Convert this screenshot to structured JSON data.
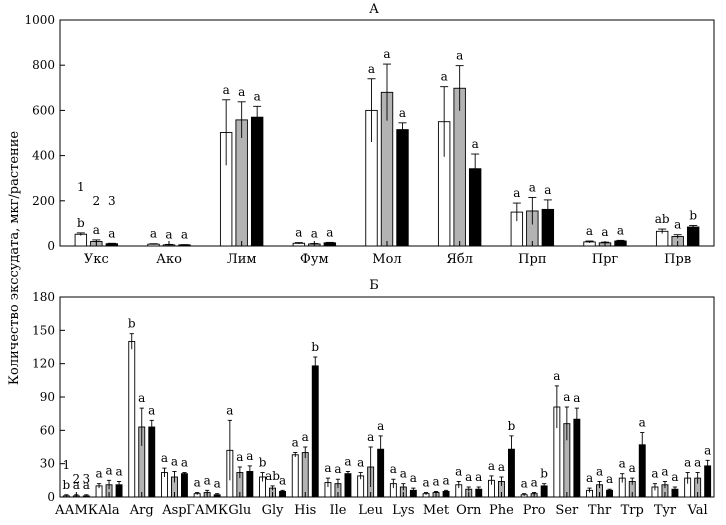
{
  "ylabel": "Количество экссудата, мкг/растение",
  "colors": {
    "white": "#ffffff",
    "grey": "#b3b3b3",
    "black": "#000000",
    "axis": "#000000"
  },
  "chart_data": [
    {
      "type": "bar",
      "title": "А",
      "xlabel": "",
      "ylabel": "Количество экссудата, мкг/растение",
      "ylim": [
        0,
        1000
      ],
      "ytick_step": 200,
      "yticks": [
        "0",
        "200",
        "400",
        "600",
        "800",
        "1000"
      ],
      "categories": [
        "Укс",
        "Ако",
        "Лим",
        "Фум",
        "Мол",
        "Ябл",
        "Прп",
        "Прг",
        "Прв"
      ],
      "series": [
        {
          "name": "1",
          "color": "white",
          "values": [
            52,
            8,
            502,
            12,
            600,
            550,
            150,
            18,
            65
          ],
          "errors": [
            6,
            2,
            145,
            3,
            140,
            155,
            40,
            4,
            10
          ],
          "letters": [
            "b",
            "a",
            "a",
            "a",
            "a",
            "a",
            "a",
            "a",
            "ab"
          ]
        },
        {
          "name": "2",
          "color": "grey",
          "values": [
            20,
            5,
            558,
            9,
            680,
            698,
            155,
            14,
            42
          ],
          "errors": [
            7,
            2,
            80,
            2,
            125,
            100,
            60,
            3,
            8
          ],
          "letters": [
            "a",
            "a",
            "a",
            "a",
            "a",
            "a",
            "a",
            "a",
            "a"
          ]
        },
        {
          "name": "3",
          "color": "black",
          "values": [
            10,
            5,
            570,
            14,
            515,
            342,
            162,
            22,
            84
          ],
          "errors": [
            2,
            1,
            48,
            2,
            30,
            65,
            42,
            3,
            7
          ],
          "letters": [
            "a",
            "a",
            "a",
            "a",
            "a",
            "a",
            "a",
            "a",
            "b"
          ]
        }
      ],
      "series_numbers": [
        "1",
        "2",
        "3"
      ]
    },
    {
      "type": "bar",
      "title": "Б",
      "xlabel": "",
      "ylabel": "Количество экссудата, мкг/растение",
      "ylim": [
        0,
        180
      ],
      "ytick_step": 30,
      "yticks": [
        "0",
        "30",
        "60",
        "90",
        "120",
        "150",
        "180"
      ],
      "categories": [
        "ААМК",
        "Ala",
        "Arg",
        "Asp",
        "ГАМК",
        "Glu",
        "Gly",
        "His",
        "Ile",
        "Leu",
        "Lys",
        "Met",
        "Orn",
        "Phe",
        "Pro",
        "Ser",
        "Thr",
        "Trp",
        "Tyr",
        "Val"
      ],
      "series": [
        {
          "name": "1",
          "color": "white",
          "values": [
            1,
            10,
            140,
            22,
            3,
            42,
            18,
            38,
            13,
            19,
            12,
            3,
            11,
            15,
            2,
            81,
            6,
            17,
            9,
            17
          ],
          "errors": [
            1,
            2,
            7,
            4,
            1,
            27,
            4,
            2,
            4,
            3,
            4,
            1,
            3,
            4,
            1,
            19,
            2,
            4,
            3,
            5
          ],
          "letters": [
            "b",
            "a",
            "b",
            "a",
            "a",
            "a",
            "b",
            "a",
            "a",
            "a",
            "a",
            "a",
            "a",
            "a",
            "a",
            "a",
            "a",
            "a",
            "a",
            "a"
          ]
        },
        {
          "name": "2",
          "color": "grey",
          "values": [
            1,
            11,
            63,
            18,
            4,
            22,
            8,
            40,
            12,
            27,
            9,
            4,
            7,
            14,
            3,
            66,
            11,
            14,
            11,
            17
          ],
          "errors": [
            1,
            4,
            17,
            5,
            2,
            5,
            2,
            5,
            4,
            18,
            3,
            1,
            2,
            4,
            1,
            15,
            3,
            3,
            3,
            5
          ],
          "letters": [
            "a",
            "a",
            "a",
            "a",
            "a",
            "a",
            "ab",
            "a",
            "a",
            "a",
            "a",
            "a",
            "a",
            "a",
            "a",
            "a",
            "a",
            "a",
            "a",
            "a"
          ]
        },
        {
          "name": "3",
          "color": "black",
          "values": [
            1,
            11,
            63,
            21,
            2,
            23,
            5,
            118,
            21,
            43,
            6,
            5,
            7,
            43,
            10,
            70,
            6,
            47,
            7,
            28
          ],
          "errors": [
            1,
            3,
            6,
            1,
            1,
            5,
            1,
            8,
            2,
            12,
            2,
            1,
            2,
            12,
            2,
            10,
            1,
            11,
            2,
            5
          ],
          "letters": [
            "a",
            "a",
            "a",
            "a",
            "a",
            "a",
            "a",
            "b",
            "a",
            "a",
            "a",
            "a",
            "a",
            "b",
            "b",
            "a",
            "a",
            "a",
            "a",
            "a"
          ]
        }
      ],
      "series_numbers": [
        "1",
        "2",
        "3"
      ]
    }
  ]
}
